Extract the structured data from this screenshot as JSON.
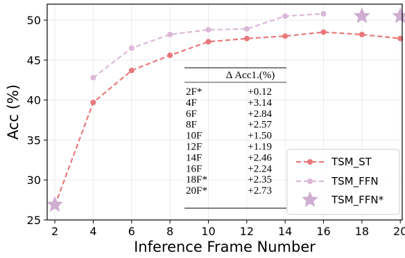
{
  "chart_data": {
    "type": "line",
    "xlabel": "Inference Frame Number",
    "ylabel": "Acc (%)",
    "xlim": [
      1.6,
      20.1
    ],
    "ylim": [
      25,
      52
    ],
    "xticks": [
      2,
      4,
      6,
      8,
      10,
      12,
      14,
      16,
      18,
      20
    ],
    "yticks": [
      25,
      30,
      35,
      40,
      45,
      50
    ],
    "grid": true,
    "legend_position": "bottom-right",
    "series": [
      {
        "name": "TSM_ST",
        "style": "dashed-circle",
        "color": "#e8787a",
        "x": [
          2,
          4,
          6,
          8,
          10,
          12,
          14,
          16,
          18,
          20
        ],
        "y": [
          26.8,
          39.7,
          43.7,
          45.6,
          47.3,
          47.7,
          48.0,
          48.5,
          48.2,
          47.7
        ]
      },
      {
        "name": "TSM_FFN",
        "style": "dashed-circle",
        "color": "#dab8d8",
        "x": [
          4,
          6,
          8,
          10,
          12,
          14,
          16
        ],
        "y": [
          42.8,
          46.5,
          48.2,
          48.8,
          48.9,
          50.5,
          50.8
        ]
      },
      {
        "name": "TSM_FFN*",
        "style": "star",
        "color": "#cfaed1",
        "x": [
          2,
          18,
          20
        ],
        "y": [
          26.9,
          50.5,
          50.5
        ]
      }
    ],
    "table": {
      "header": "Δ Acc1.(%)",
      "rows": [
        {
          "frames": "2F*",
          "delta": "+0.12"
        },
        {
          "frames": "4F",
          "delta": "+3.14"
        },
        {
          "frames": "6F",
          "delta": "+2.84"
        },
        {
          "frames": "8F",
          "delta": "+2.57"
        },
        {
          "frames": "10F",
          "delta": "+1.50"
        },
        {
          "frames": "12F",
          "delta": "+1.19"
        },
        {
          "frames": "14F",
          "delta": "+2.46"
        },
        {
          "frames": "16F",
          "delta": "+2.24"
        },
        {
          "frames": "18F*",
          "delta": "+2.35"
        },
        {
          "frames": "20F*",
          "delta": "+2.73"
        }
      ]
    }
  }
}
